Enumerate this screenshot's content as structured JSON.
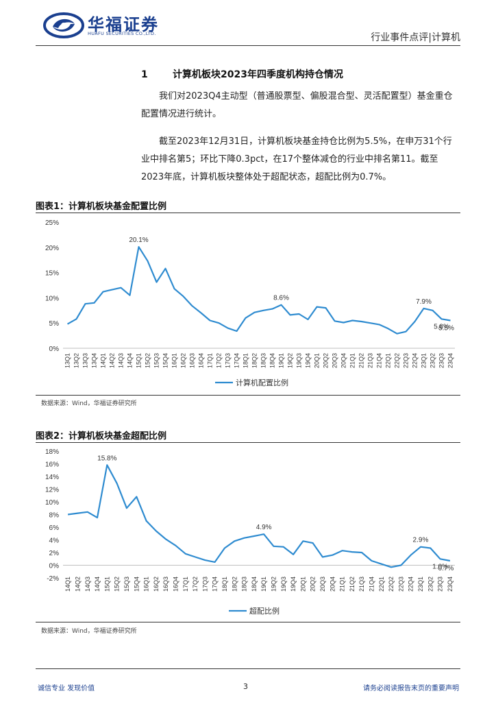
{
  "header": {
    "brand_cn": "华福证券",
    "brand_en": "HUAFU SECURITIES CO.,LTD.",
    "report_type": "行业事件点评|计算机"
  },
  "section": {
    "number": "1",
    "title": "计算机板块2023年四季度机构持仓情况"
  },
  "paragraphs": [
    "我们对2023Q4主动型（普通股票型、偏股混合型、灵活配置型）基金重仓配置情况进行统计。",
    "截至2023年12月31日，计算机板块基金持仓比例为5.5%，在申万31个行业中排名第5；环比下降0.3pct，在17个整体减仓的行业中排名第11。截至2023年底，计算机板块整体处于超配状态，超配比例为0.7%。"
  ],
  "colors": {
    "brand": "#1a3f8f",
    "series": "#2e8bd0"
  },
  "chart_data": [
    {
      "id": "chart1",
      "type": "line",
      "caption": "图表1：计算机板块基金配置比例",
      "source": "数据来源：Wind，华福证券研究所",
      "x": [
        "13Q1",
        "13Q2",
        "13Q3",
        "13Q4",
        "14Q1",
        "14Q2",
        "14Q3",
        "14Q4",
        "15Q1",
        "15Q2",
        "15Q3",
        "15Q4",
        "16Q1",
        "16Q2",
        "16Q3",
        "16Q4",
        "17Q1",
        "17Q2",
        "17Q3",
        "17Q4",
        "18Q1",
        "18Q2",
        "18Q3",
        "18Q4",
        "19Q1",
        "19Q2",
        "19Q3",
        "19Q4",
        "20Q1",
        "20Q2",
        "20Q3",
        "20Q4",
        "21Q1",
        "21Q2",
        "21Q3",
        "21Q4",
        "22Q1",
        "22Q2",
        "22Q3",
        "22Q4",
        "23Q1",
        "23Q2",
        "23Q3",
        "23Q4"
      ],
      "series": [
        {
          "name": "计算机配置比例",
          "values": [
            4.8,
            5.8,
            8.8,
            9.0,
            11.2,
            11.6,
            12.0,
            10.5,
            20.1,
            17.3,
            13.1,
            15.8,
            11.8,
            10.3,
            8.4,
            7.0,
            5.5,
            5.0,
            4.0,
            3.4,
            6.0,
            7.1,
            7.5,
            7.8,
            8.6,
            6.6,
            6.8,
            5.7,
            8.2,
            8.0,
            5.4,
            5.1,
            5.5,
            5.3,
            5.0,
            4.7,
            3.9,
            2.9,
            3.3,
            5.3,
            7.9,
            7.5,
            5.8,
            5.5
          ]
        }
      ],
      "ylim": [
        0,
        25
      ],
      "yticks": [
        "0%",
        "5%",
        "10%",
        "15%",
        "20%",
        "25%"
      ],
      "annotations": [
        {
          "x": "15Q1",
          "label": "20.1%"
        },
        {
          "x": "19Q1",
          "label": "8.6%"
        },
        {
          "x": "23Q1",
          "label": "7.9%"
        },
        {
          "x": "23Q3",
          "label": "5.8%"
        },
        {
          "x": "23Q4",
          "label": "5.5%"
        }
      ],
      "legend": "bottom-center",
      "grid": false
    },
    {
      "id": "chart2",
      "type": "line",
      "caption": "图表2：计算机板块基金超配比例",
      "source": "数据来源：Wind，华福证券研究所",
      "x": [
        "14Q1",
        "14Q2",
        "14Q3",
        "14Q4",
        "15Q1",
        "15Q2",
        "15Q3",
        "15Q4",
        "16Q1",
        "16Q2",
        "16Q3",
        "16Q4",
        "17Q1",
        "17Q2",
        "17Q3",
        "17Q4",
        "18Q1",
        "18Q2",
        "18Q3",
        "18Q4",
        "19Q1",
        "19Q2",
        "19Q3",
        "19Q4",
        "20Q1",
        "20Q2",
        "20Q3",
        "20Q4",
        "21Q1",
        "21Q2",
        "21Q3",
        "21Q4",
        "22Q1",
        "22Q2",
        "22Q3",
        "22Q4",
        "23Q1",
        "23Q2",
        "23Q3",
        "23Q4"
      ],
      "series": [
        {
          "name": "超配比例",
          "values": [
            8.0,
            8.2,
            8.4,
            7.5,
            15.8,
            12.9,
            9.0,
            10.8,
            7.0,
            5.4,
            4.1,
            3.1,
            1.8,
            1.3,
            0.8,
            0.5,
            2.7,
            3.8,
            4.3,
            4.6,
            4.9,
            3.0,
            2.9,
            1.7,
            3.8,
            3.5,
            1.3,
            1.6,
            2.3,
            2.1,
            2.0,
            0.7,
            0.2,
            -0.3,
            0.0,
            1.6,
            2.9,
            2.7,
            1.0,
            0.7
          ]
        }
      ],
      "ylim": [
        -2,
        18
      ],
      "yticks": [
        "-2%",
        "0%",
        "2%",
        "4%",
        "6%",
        "8%",
        "10%",
        "12%",
        "14%",
        "16%",
        "18%"
      ],
      "annotations": [
        {
          "x": "15Q1",
          "label": "15.8%"
        },
        {
          "x": "19Q1",
          "label": "4.9%"
        },
        {
          "x": "23Q1",
          "label": "2.9%"
        },
        {
          "x": "23Q3",
          "label": "1.0%"
        },
        {
          "x": "23Q4",
          "label": "0.7%"
        }
      ],
      "legend": "bottom-center",
      "grid": false
    }
  ],
  "footer": {
    "left": "诚信专业  发现价值",
    "page": "3",
    "right": "请务必阅读报告末页的重要声明"
  }
}
